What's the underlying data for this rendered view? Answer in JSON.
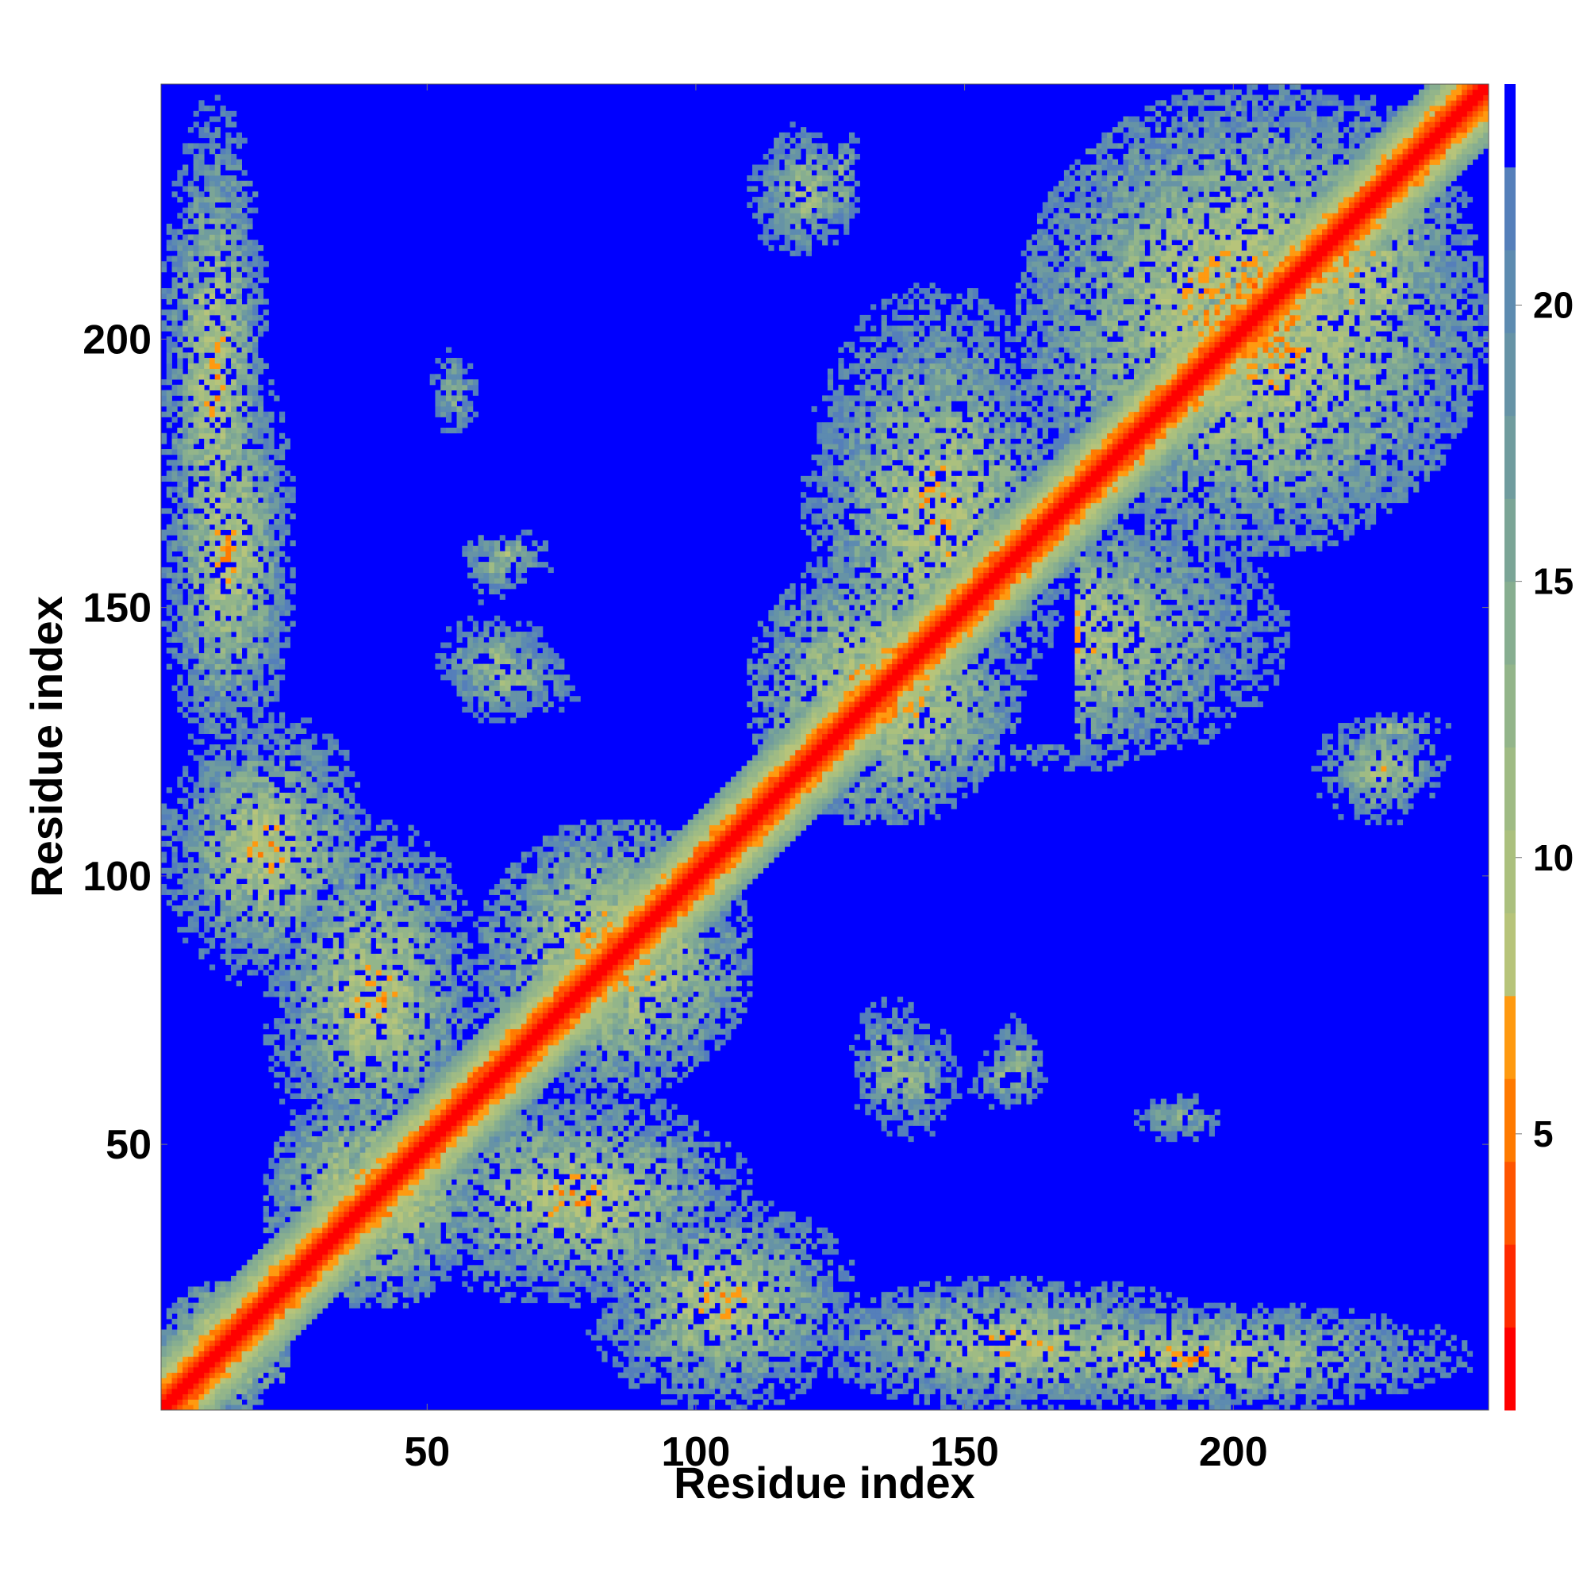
{
  "chart_data": {
    "type": "heatmap",
    "title": "",
    "xlabel": "Residue index",
    "ylabel": "Residue index",
    "n_residues": 247,
    "xlim": [
      1,
      247
    ],
    "ylim": [
      1,
      247
    ],
    "x_ticks": [
      50,
      100,
      150,
      200
    ],
    "x_tick_labels": [
      "50",
      "100",
      "150",
      "200"
    ],
    "y_ticks": [
      50,
      100,
      150,
      200
    ],
    "y_tick_labels": [
      "50",
      "100",
      "150",
      "200"
    ],
    "colorbar": {
      "vmin": 0,
      "vmax": 24,
      "ticks": [
        5,
        10,
        15,
        20
      ],
      "tick_labels": [
        "5",
        "10",
        "15",
        "20"
      ],
      "levels": [
        0,
        1.5,
        3,
        4.5,
        6,
        7.5,
        9,
        10.5,
        12,
        13.5,
        15,
        16.5,
        18,
        19.5,
        21,
        22.5,
        24
      ],
      "colors": [
        "#ff0000",
        "#ff2a00",
        "#ff5500",
        "#ff7a00",
        "#ff9a10",
        "#b7c47a",
        "#abc07e",
        "#9fbb84",
        "#93b58a",
        "#87ae90",
        "#7ba596",
        "#709c9e",
        "#6693a6",
        "#5d8bb0",
        "#557fba",
        "#0000ff"
      ],
      "background_color": "#0000ff",
      "description_values": "contact distance (Å): red < 6, orange 6–7.5, green/grey 7.5–22.5, blue >= 22.5"
    },
    "diagonal": {
      "description": "self-contact band along i = j",
      "value": 0
    },
    "contact_regions": [
      {
        "x": [
          1,
          24
        ],
        "y": [
          1,
          24
        ],
        "min": 1
      },
      {
        "x": [
          20,
          60
        ],
        "y": [
          20,
          60
        ],
        "min": 2
      },
      {
        "x": [
          60,
          110
        ],
        "y": [
          60,
          110
        ],
        "min": 2
      },
      {
        "x": [
          110,
          160
        ],
        "y": [
          110,
          160
        ],
        "min": 2
      },
      {
        "x": [
          160,
          247
        ],
        "y": [
          160,
          247
        ],
        "min": 2
      },
      {
        "x": [
          1,
          40
        ],
        "y": [
          80,
          130
        ],
        "min": 4
      },
      {
        "x": [
          45,
          110
        ],
        "y": [
          20,
          60
        ],
        "min": 4
      },
      {
        "x": [
          120,
          200
        ],
        "y": [
          1,
          25
        ],
        "min": 4
      },
      {
        "x": [
          1,
          20
        ],
        "y": [
          140,
          245
        ],
        "min": 4
      },
      {
        "x": [
          120,
          170
        ],
        "y": [
          125,
          210
        ],
        "min": 4
      },
      {
        "x": [
          200,
          245
        ],
        "y": [
          180,
          245
        ],
        "min": 4
      },
      {
        "x": [
          215,
          240
        ],
        "y": [
          110,
          130
        ],
        "min": 6
      },
      {
        "x": [
          50,
          80
        ],
        "y": [
          128,
          145
        ],
        "min": 8
      },
      {
        "x": [
          55,
          75
        ],
        "y": [
          155,
          165
        ],
        "min": 8
      },
      {
        "x": [
          130,
          150
        ],
        "y": [
          50,
          75
        ],
        "min": 8
      },
      {
        "x": [
          150,
          165
        ],
        "y": [
          55,
          70
        ],
        "min": 9
      },
      {
        "x": [
          125,
          130
        ],
        "y": [
          220,
          240
        ],
        "min": 7
      },
      {
        "x": [
          180,
          200
        ],
        "y": [
          50,
          60
        ],
        "min": 9
      }
    ]
  }
}
